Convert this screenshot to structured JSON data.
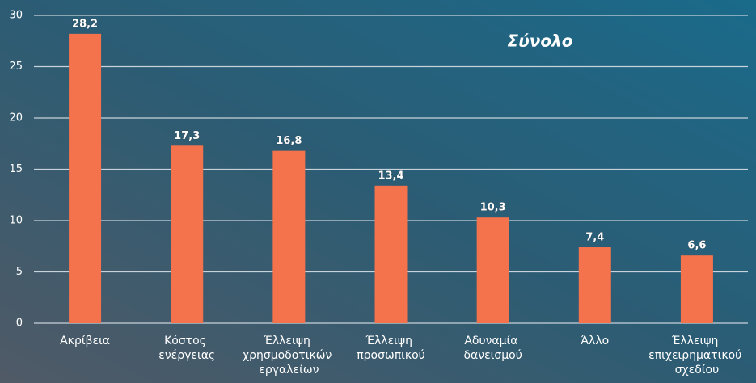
{
  "chart_data": {
    "type": "bar",
    "title": "Σύνολο",
    "categories": [
      "Ακρίβεια",
      "Κόστος ενέργειας",
      "Έλλειψη χρησμοδοτικών εργαλείων",
      "Έλλειψη προσωπικού",
      "Αδυναμία δανεισμού",
      "Άλλο",
      "Έλλειψη επιχειρηματικού σχεδίου"
    ],
    "values": [
      28.2,
      17.3,
      16.8,
      13.4,
      10.3,
      7.4,
      6.6
    ],
    "value_labels": [
      "28,2",
      "17,3",
      "16,8",
      "13,4",
      "10,3",
      "7,4",
      "6,6"
    ],
    "color": "#f4724c",
    "ylim": [
      0,
      30
    ],
    "yticks": [
      0,
      5,
      10,
      15,
      20,
      25,
      30
    ],
    "grid": true
  }
}
